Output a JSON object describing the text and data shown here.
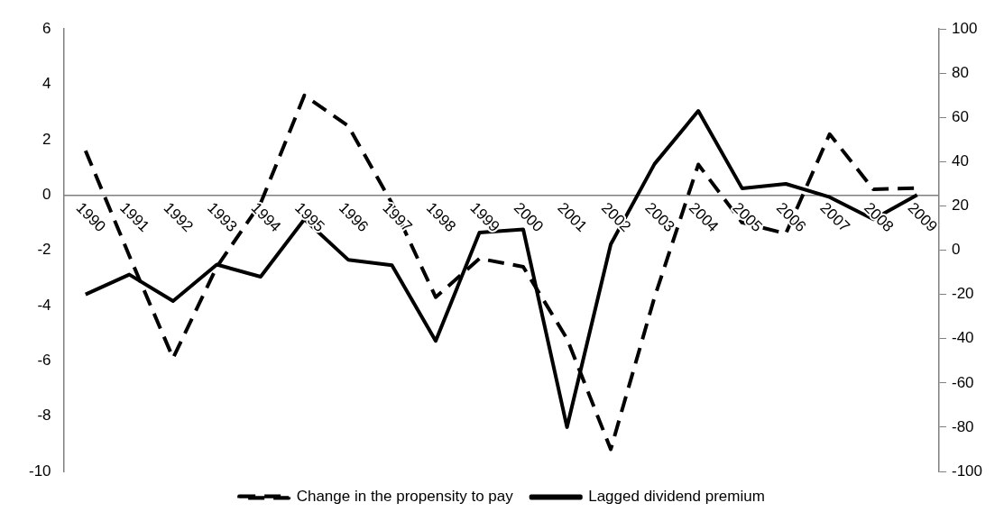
{
  "chart_data": {
    "type": "line",
    "categories": [
      "1990",
      "1991",
      "1992",
      "1993",
      "1994",
      "1995",
      "1996",
      "1997",
      "1998",
      "1999",
      "2000",
      "2001",
      "2002",
      "2003",
      "2004",
      "2005",
      "2006",
      "2007",
      "2008",
      "2009"
    ],
    "series": [
      {
        "name": "Change in the propensity to pay",
        "color": "#000000",
        "line_style": "dashed",
        "values": [
          1.6,
          -2.2,
          -5.9,
          -2.6,
          -0.3,
          3.6,
          2.5,
          -0.3,
          -3.7,
          -2.3,
          -2.6,
          -5.2,
          -9.2,
          -3.7,
          1.1,
          -1.0,
          -1.4,
          2.2,
          0.2,
          0.25
        ]
      },
      {
        "name": "Lagged dividend premium",
        "color": "#000000",
        "line_style": "solid",
        "axis": "y2",
        "values": [
          -20,
          -11,
          -23,
          -6.5,
          -12,
          14,
          -4.3,
          -6.8,
          -41,
          8,
          9.4,
          -80,
          2.7,
          39,
          63,
          28,
          30,
          24,
          14,
          25
        ]
      }
    ],
    "ylim": [
      -10,
      6
    ],
    "yticks": [
      -10,
      -8,
      -6,
      -4,
      -2,
      0,
      2,
      4,
      6
    ],
    "y2lim": [
      -100,
      100
    ],
    "y2ticks": [
      -100,
      -80,
      -60,
      -40,
      -20,
      0,
      20,
      40,
      60,
      80,
      100
    ],
    "grid": false,
    "legend": "bottom",
    "marker": "none"
  }
}
